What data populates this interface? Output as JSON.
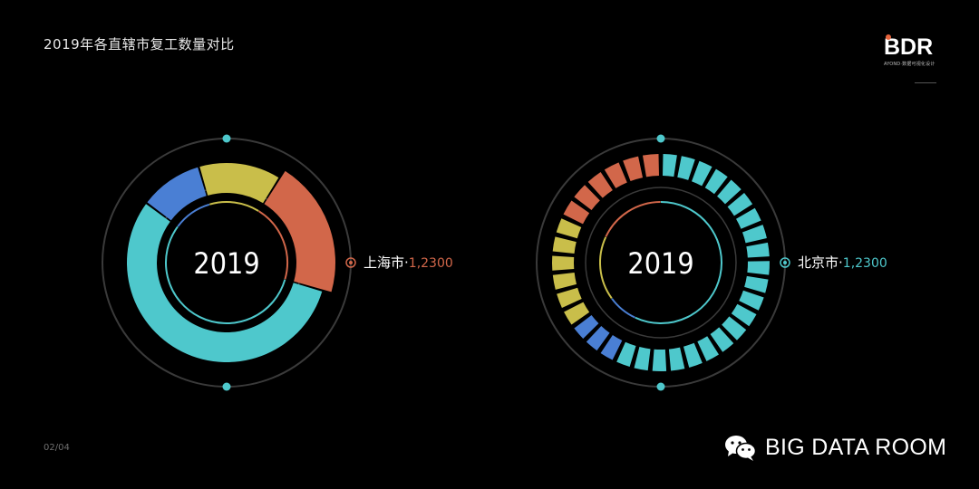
{
  "page": {
    "title": "2019年各直辖市复工数量对比",
    "page_number": "02/04",
    "logo": {
      "mark": "BDR",
      "subtitle": "AYOND·数据可视化设计"
    },
    "brand": {
      "name": "BIG DATA ROOM",
      "icon": "wechat-icon"
    }
  },
  "colors": {
    "cyan": "#4ec8cc",
    "orange": "#d2674a",
    "yellow": "#c9be4a",
    "blue": "#4a7fd4",
    "ring": "#3a3a3a",
    "background": "#000000"
  },
  "chart_data": [
    {
      "type": "pie",
      "center_label": "2019",
      "callout": {
        "name": "上海市",
        "separator": "·",
        "value": "1,2300",
        "color": "#d2674a"
      },
      "segments": [
        {
          "color": "#d2674a",
          "value": 0.2
        },
        {
          "color": "#4ec8cc",
          "value": 0.54
        },
        {
          "color": "#4a7fd4",
          "value": 0.1
        },
        {
          "color": "#c9be4a",
          "value": 0.13
        }
      ]
    },
    {
      "type": "pie",
      "center_label": "2019",
      "callout": {
        "name": "北京市",
        "separator": "·",
        "value": "1,2300",
        "color": "#4ec8cc"
      },
      "segments": [
        {
          "color": "#4ec8cc",
          "value": 0.57
        },
        {
          "color": "#4a7fd4",
          "value": 0.08
        },
        {
          "color": "#c9be4a",
          "value": 0.17
        },
        {
          "color": "#d2674a",
          "value": 0.18
        }
      ]
    }
  ]
}
